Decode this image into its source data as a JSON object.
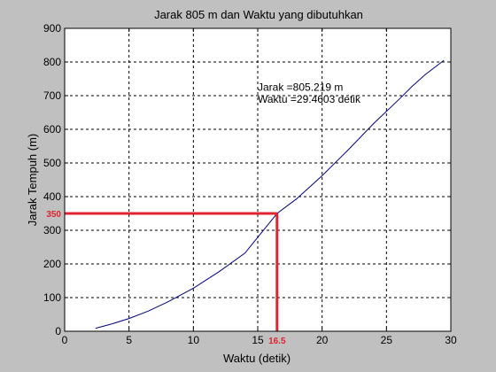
{
  "chart_data": {
    "type": "line",
    "title": "Jarak 805 m dan Waktu yang dibutuhkan",
    "xlabel": "Waktu (detik)",
    "ylabel": "Jarak Tempuh (m)",
    "xlim": [
      0,
      30
    ],
    "ylim": [
      0,
      900
    ],
    "xticks": [
      0,
      5,
      10,
      15,
      20,
      25,
      30
    ],
    "yticks": [
      0,
      100,
      200,
      300,
      400,
      500,
      600,
      700,
      800,
      900
    ],
    "grid": true,
    "series": [
      {
        "color": "#000080",
        "x": [
          2.4,
          3.5,
          5,
          6.5,
          8,
          10,
          12,
          14,
          16.5,
          18,
          20,
          22,
          24,
          26,
          27,
          28,
          29.46
        ],
        "y": [
          9,
          20,
          38,
          60,
          87,
          128,
          177,
          232,
          350,
          393,
          462,
          538,
          617,
          690,
          728,
          762,
          805
        ]
      }
    ],
    "annotations": {
      "line1": "Jarak =805.219 m",
      "line2": "Waktu =29.4603 detik",
      "at_x": 15,
      "at_y_line1": 725,
      "at_y_line2": 690
    },
    "marker": {
      "x": 16.5,
      "y": 350,
      "x_label": "16.5",
      "y_label": "350",
      "color": "#e0242f"
    }
  }
}
